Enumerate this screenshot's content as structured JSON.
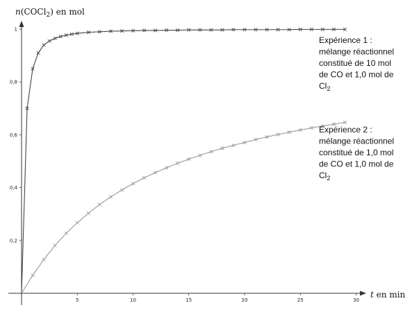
{
  "chart_data": {
    "type": "line",
    "title": "",
    "ylabel": {
      "italic": "n",
      "open": "(COCl",
      "sub": "2",
      "close": ")",
      "unit": " en mol"
    },
    "xlabel": {
      "italic": "t",
      "unit": " en min"
    },
    "xlim": [
      0,
      30
    ],
    "ylim": [
      0,
      1.05
    ],
    "x_ticks": [
      5,
      10,
      15,
      20,
      25,
      30
    ],
    "y_ticks": [
      {
        "value": 0.2,
        "label": "0,2"
      },
      {
        "value": 0.4,
        "label": "0,4"
      },
      {
        "value": 0.6,
        "label": "0,6"
      },
      {
        "value": 0.8,
        "label": "0,8"
      },
      {
        "value": 1.0,
        "label": "1"
      }
    ],
    "grid": false,
    "series": [
      {
        "k": 1.0,
        "color": "#444444",
        "markers": "x",
        "x": [
          0,
          0.5,
          1,
          1.5,
          2,
          2.5,
          3,
          3.5,
          4,
          4.5,
          5,
          6,
          7,
          8,
          9,
          10,
          11,
          12,
          13,
          14,
          15,
          16,
          17,
          18,
          19,
          20,
          21,
          22,
          23,
          24,
          25,
          26,
          27,
          28,
          29
        ],
        "y": [
          0,
          0.7,
          0.85,
          0.91,
          0.94,
          0.955,
          0.965,
          0.972,
          0.977,
          0.981,
          0.984,
          0.988,
          0.99,
          0.992,
          0.993,
          0.994,
          0.995,
          0.995,
          0.996,
          0.996,
          0.997,
          0.997,
          0.997,
          0.997,
          0.998,
          0.998,
          0.998,
          0.998,
          0.998,
          0.998,
          0.999,
          0.999,
          0.999,
          0.999,
          0.999
        ],
        "label_lines": [
          [
            {
              "t": "Expérience 1 :"
            }
          ],
          [
            {
              "t": "mélange réactionnel"
            }
          ],
          [
            {
              "t": "constitué de 10 mol"
            }
          ],
          [
            {
              "t": "de CO et 1,0 mol de"
            }
          ],
          [
            {
              "t": "Cl"
            },
            {
              "t": "2",
              "sub": true
            }
          ]
        ]
      },
      {
        "color": "#999999",
        "markers": "x",
        "x": [
          0,
          1,
          2,
          3,
          4,
          5,
          6,
          7,
          8,
          9,
          10,
          11,
          12,
          13,
          14,
          15,
          16,
          17,
          18,
          19,
          20,
          21,
          22,
          23,
          24,
          25,
          26,
          27,
          28,
          29
        ],
        "y": [
          0,
          0.068,
          0.128,
          0.181,
          0.227,
          0.267,
          0.303,
          0.336,
          0.365,
          0.391,
          0.415,
          0.437,
          0.457,
          0.475,
          0.492,
          0.508,
          0.522,
          0.536,
          0.549,
          0.56,
          0.571,
          0.582,
          0.592,
          0.601,
          0.61,
          0.618,
          0.626,
          0.633,
          0.64,
          0.647
        ],
        "label_lines": [
          [
            {
              "t": "Expérience 2 :"
            }
          ],
          [
            {
              "t": "mélange réactionnel"
            }
          ],
          [
            {
              "t": "constitué de 1,0 mol"
            }
          ],
          [
            {
              "t": "de CO et 1,0 mol de"
            }
          ],
          [
            {
              "t": "Cl"
            },
            {
              "t": "2",
              "sub": true
            }
          ]
        ]
      }
    ]
  }
}
